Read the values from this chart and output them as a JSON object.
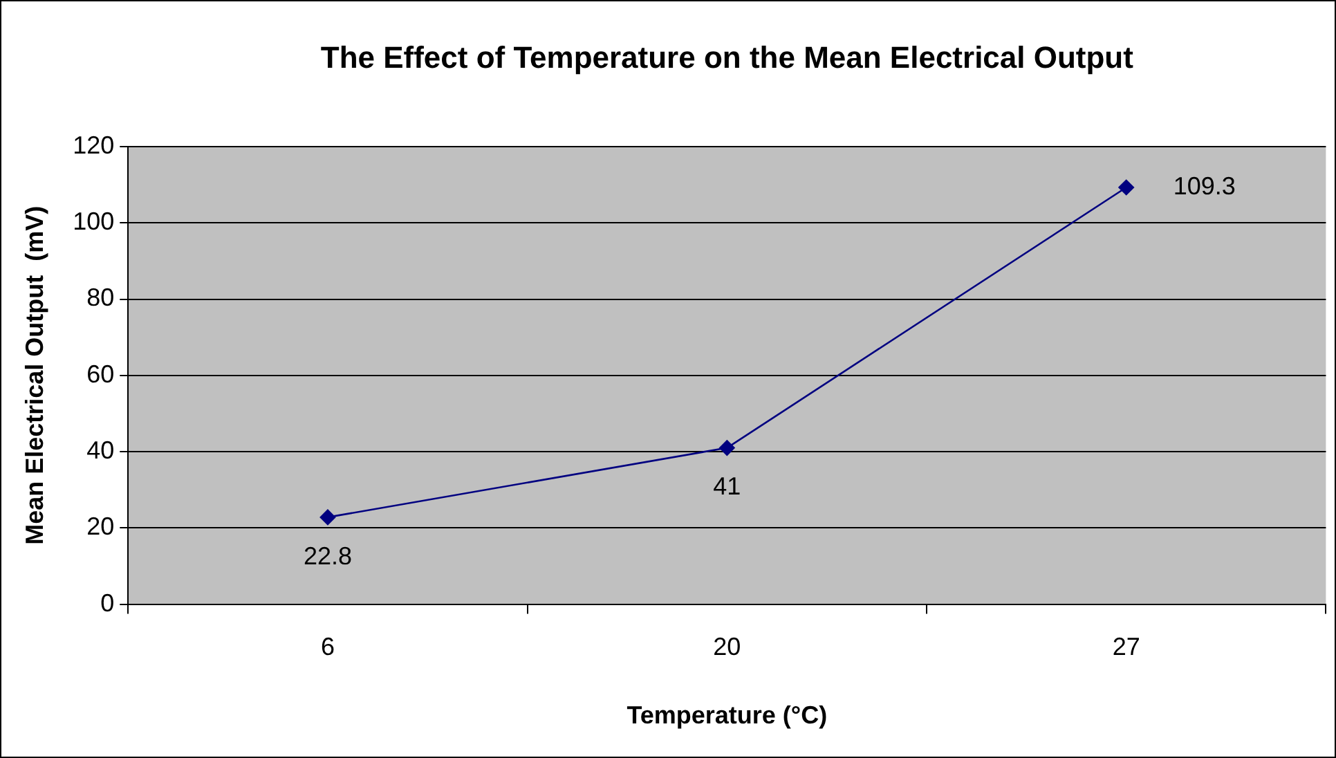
{
  "chart_data": {
    "type": "line",
    "title": "The Effect of Temperature on the Mean Electrical Output",
    "xlabel": "Temperature (°C)",
    "ylabel": "Mean Electrical Output  (mV)",
    "categories": [
      "6",
      "20",
      "27"
    ],
    "series": [
      {
        "color": "#000080",
        "values": [
          22.8,
          41,
          109.3
        ]
      }
    ],
    "ylim": [
      0,
      120
    ],
    "yticks": [
      0,
      20,
      40,
      60,
      80,
      100,
      120
    ],
    "grid": "y",
    "legend": false,
    "marker": "diamond",
    "line_style": "solid",
    "data_labels": true
  }
}
